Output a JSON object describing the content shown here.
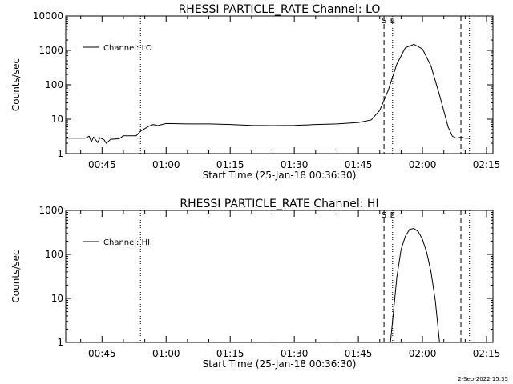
{
  "page": {
    "timestamp": "2-Sep-2022 15:35"
  },
  "chart_data": [
    {
      "type": "line",
      "title": "RHESSI PARTICLE_RATE Channel: LO",
      "xlabel": "Start Time (25-Jan-18 00:36:30)",
      "ylabel": "Counts/sec",
      "log_y": true,
      "y_range": [
        1,
        10000
      ],
      "y_ticks": [
        1,
        10,
        100,
        1000,
        10000
      ],
      "y_tick_labels": [
        "1",
        "10",
        "100",
        "1000",
        "10000"
      ],
      "x_range": [
        "00:36:30",
        "02:16:30"
      ],
      "x_ticks": [
        "00:45",
        "01:00",
        "01:15",
        "01:30",
        "01:45",
        "02:00",
        "02:15"
      ],
      "grid": false,
      "legend": {
        "position": "top-left",
        "entries": [
          "Channel: LO"
        ]
      },
      "annotations": [
        {
          "text": "S",
          "time": "01:51:00"
        },
        {
          "text": "E",
          "time": "01:53:00"
        }
      ],
      "dashed_lines": [
        "01:51:00",
        "02:09:00"
      ],
      "dotted_lines": [
        "00:54:00",
        "01:53:00",
        "02:11:00"
      ],
      "series": [
        {
          "name": "Channel: LO",
          "points": [
            [
              "00:36:30",
              2.8
            ],
            [
              "00:41:00",
              2.8
            ],
            [
              "00:42:00",
              3.2
            ],
            [
              "00:42:30",
              2.2
            ],
            [
              "00:43:00",
              3.0
            ],
            [
              "00:44:00",
              2.1
            ],
            [
              "00:44:30",
              2.9
            ],
            [
              "00:45:30",
              2.5
            ],
            [
              "00:46:00",
              2.0
            ],
            [
              "00:47:00",
              2.6
            ],
            [
              "00:49:00",
              2.7
            ],
            [
              "00:50:00",
              3.3
            ],
            [
              "00:53:00",
              3.3
            ],
            [
              "00:54:00",
              4.5
            ],
            [
              "00:55:00",
              5.3
            ],
            [
              "00:56:00",
              6.3
            ],
            [
              "00:57:00",
              7.0
            ],
            [
              "00:58:00",
              6.5
            ],
            [
              "01:00:00",
              7.5
            ],
            [
              "01:05:00",
              7.3
            ],
            [
              "01:10:00",
              7.3
            ],
            [
              "01:15:00",
              7.0
            ],
            [
              "01:20:00",
              6.6
            ],
            [
              "01:25:00",
              6.5
            ],
            [
              "01:30:00",
              6.6
            ],
            [
              "01:35:00",
              7.0
            ],
            [
              "01:40:00",
              7.3
            ],
            [
              "01:45:00",
              8.0
            ],
            [
              "01:48:00",
              9.5
            ],
            [
              "01:50:00",
              18
            ],
            [
              "01:52:00",
              70
            ],
            [
              "01:54:00",
              400
            ],
            [
              "01:56:00",
              1200
            ],
            [
              "01:58:00",
              1500
            ],
            [
              "02:00:00",
              1100
            ],
            [
              "02:02:00",
              350
            ],
            [
              "02:04:00",
              50
            ],
            [
              "02:06:00",
              6
            ],
            [
              "02:07:00",
              3.2
            ],
            [
              "02:08:00",
              2.8
            ],
            [
              "02:09:00",
              3.0
            ],
            [
              "02:10:00",
              2.8
            ],
            [
              "02:11:00",
              2.8
            ]
          ]
        }
      ]
    },
    {
      "type": "line",
      "title": "RHESSI PARTICLE_RATE Channel: HI",
      "xlabel": "Start Time (25-Jan-18 00:36:30)",
      "ylabel": "Counts/sec",
      "log_y": true,
      "y_range": [
        1,
        1000
      ],
      "y_ticks": [
        1,
        10,
        100,
        1000
      ],
      "y_tick_labels": [
        "1",
        "10",
        "100",
        "1000"
      ],
      "x_range": [
        "00:36:30",
        "02:16:30"
      ],
      "x_ticks": [
        "00:45",
        "01:00",
        "01:15",
        "01:30",
        "01:45",
        "02:00",
        "02:15"
      ],
      "grid": false,
      "legend": {
        "position": "top-left",
        "entries": [
          "Channel: HI"
        ]
      },
      "annotations": [
        {
          "text": "S",
          "time": "01:51:00"
        },
        {
          "text": "E",
          "time": "01:53:00"
        }
      ],
      "dashed_lines": [
        "01:51:00",
        "02:09:00"
      ],
      "dotted_lines": [
        "00:54:00",
        "01:53:00",
        "02:11:00"
      ],
      "series": [
        {
          "name": "Channel: HI",
          "points": [
            [
              "01:52:30",
              1.0
            ],
            [
              "01:53:00",
              3
            ],
            [
              "01:54:00",
              30
            ],
            [
              "01:55:00",
              130
            ],
            [
              "01:56:00",
              260
            ],
            [
              "01:57:00",
              370
            ],
            [
              "01:58:00",
              390
            ],
            [
              "01:59:00",
              330
            ],
            [
              "02:00:00",
              220
            ],
            [
              "02:01:00",
              110
            ],
            [
              "02:02:00",
              40
            ],
            [
              "02:03:00",
              9
            ],
            [
              "02:03:30",
              3
            ],
            [
              "02:04:00",
              1.0
            ]
          ]
        }
      ]
    }
  ]
}
